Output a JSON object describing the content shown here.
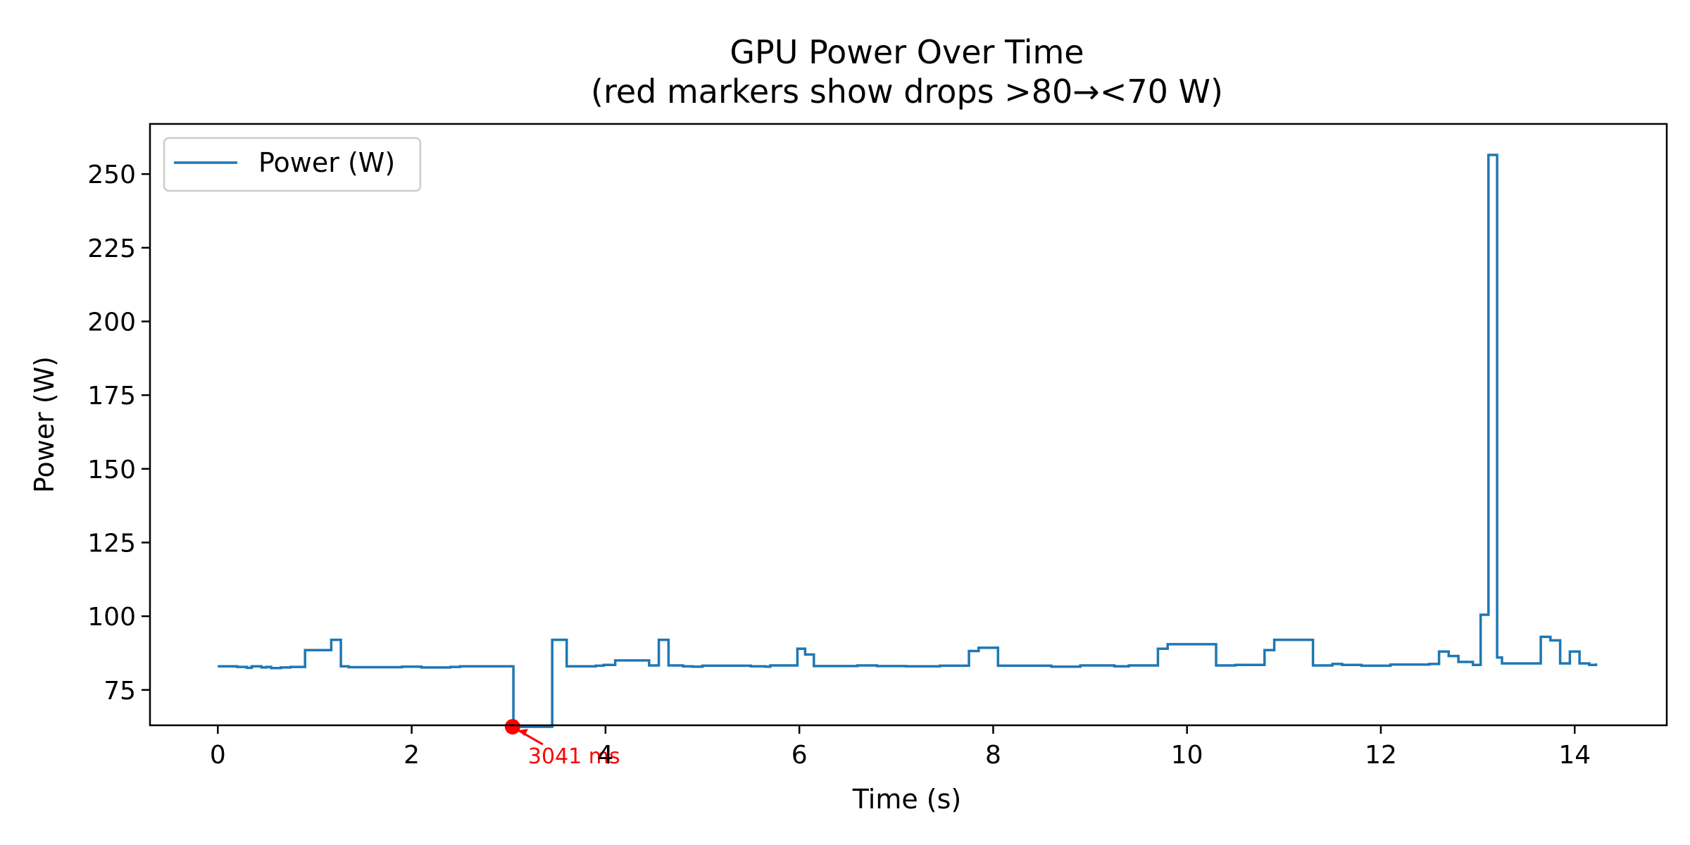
{
  "chart_data": {
    "type": "line",
    "drawstyle": "steps-post",
    "title": "GPU Power Over Time",
    "subtitle": "(red markers show drops >80→<70 W)",
    "xlabel": "Time (s)",
    "ylabel": "Power (W)",
    "xlim": [
      -0.7,
      14.95
    ],
    "ylim": [
      63,
      267
    ],
    "xticks": [
      0,
      2,
      4,
      6,
      8,
      10,
      12,
      14
    ],
    "yticks": [
      75,
      100,
      125,
      150,
      175,
      200,
      225,
      250
    ],
    "grid": false,
    "legend": {
      "position": "upper-left",
      "entries": [
        "Power (W)"
      ]
    },
    "colors": {
      "series": "#1f77b4",
      "marker": "#ff0000"
    },
    "series": [
      {
        "name": "Power (W)",
        "x": [
          0,
          0.2,
          0.3,
          0.35,
          0.45,
          0.5,
          0.55,
          0.65,
          0.75,
          0.9,
          1.17,
          1.27,
          1.35,
          1.9,
          2.1,
          2.4,
          2.5,
          3.04,
          3.05,
          3.35,
          3.45,
          3.6,
          3.9,
          3.98,
          4.1,
          4.45,
          4.55,
          4.65,
          4.8,
          4.9,
          5.0,
          5.5,
          5.65,
          5.7,
          5.98,
          6.06,
          6.15,
          6.6,
          6.8,
          7.1,
          7.45,
          7.75,
          7.85,
          8.05,
          8.6,
          8.9,
          9.25,
          9.4,
          9.7,
          9.8,
          10.3,
          10.5,
          10.8,
          10.9,
          11.3,
          11.5,
          11.6,
          11.8,
          12.1,
          12.5,
          12.6,
          12.7,
          12.8,
          12.95,
          13.03,
          13.11,
          13.2,
          13.25,
          13.55,
          13.65,
          13.75,
          13.85,
          13.95,
          14.05,
          14.15,
          14.22
        ],
        "y": [
          83,
          82.8,
          82.5,
          83,
          82.6,
          82.8,
          82.4,
          82.6,
          82.8,
          88.5,
          92,
          83,
          82.7,
          82.9,
          82.6,
          82.8,
          83,
          83,
          62.5,
          62.5,
          92,
          83,
          83.2,
          83.5,
          85,
          83.3,
          92,
          83.3,
          83,
          82.9,
          83.2,
          83,
          82.9,
          83.3,
          89,
          87,
          83.1,
          83.3,
          83.1,
          83,
          83.2,
          88.2,
          89.3,
          83.2,
          82.9,
          83.3,
          83,
          83.3,
          89,
          90.5,
          83.3,
          83.5,
          88.5,
          92,
          83.3,
          83.8,
          83.5,
          83.2,
          83.6,
          83.8,
          88,
          86.5,
          84.5,
          83.5,
          100.5,
          256.5,
          86,
          84,
          84,
          93,
          91.8,
          84,
          88,
          84,
          83.5,
          84
        ]
      }
    ],
    "markers": [
      {
        "x": 3.041,
        "y": 62.5,
        "label": "3041 ms"
      }
    ]
  }
}
